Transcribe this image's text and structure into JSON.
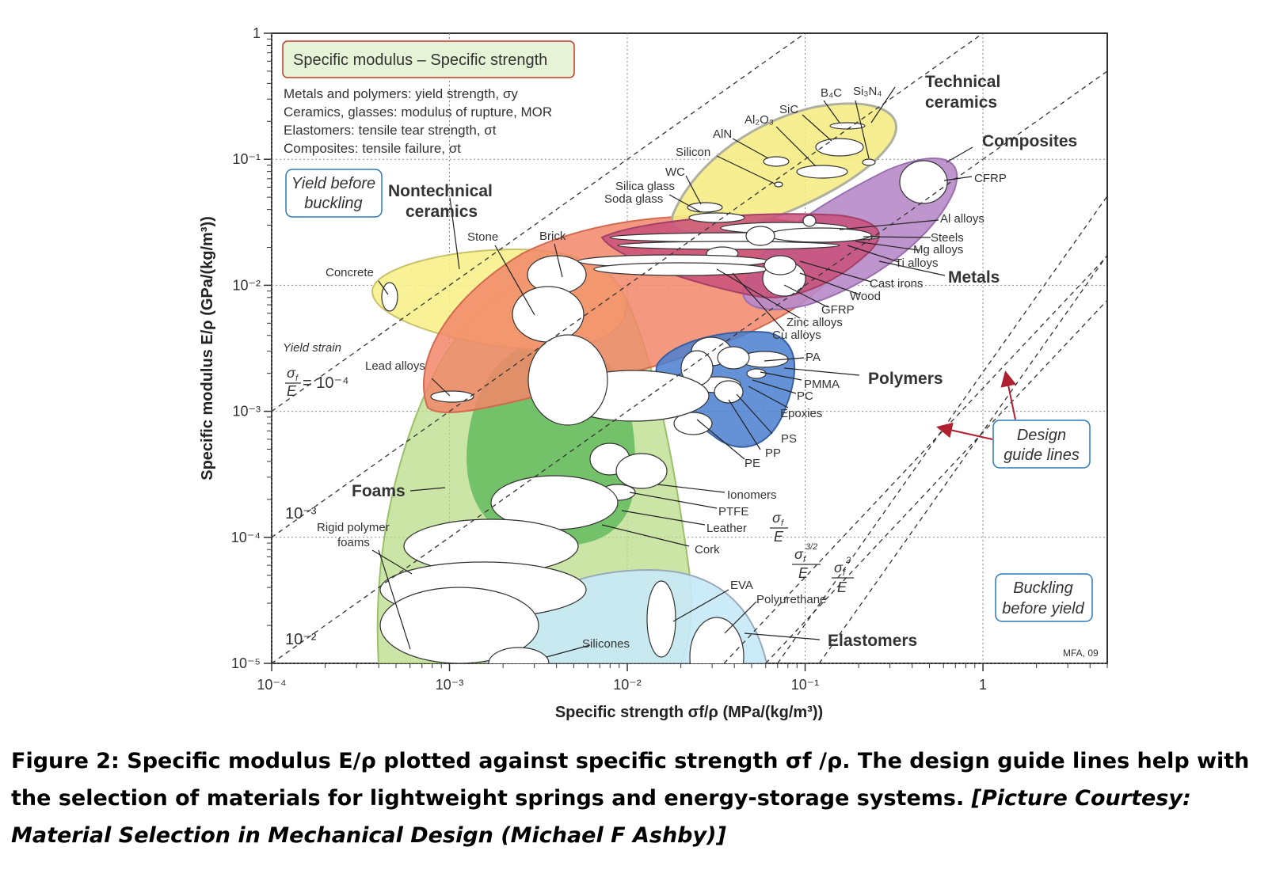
{
  "chart_data": {
    "type": "scatter",
    "subtype": "material-property bubble chart (log-log)",
    "x_scale": "log",
    "y_scale": "log",
    "xlim": [
      0.0001,
      5
    ],
    "ylim": [
      1e-05,
      1
    ],
    "grid": true,
    "xlabel": "Specific strength σf/ρ (MPa/(kg/m³))",
    "ylabel": "Specific modulus E/ρ (GPa/(kg/m³))",
    "x_ticks": [
      "10⁻⁴",
      "10⁻³",
      "10⁻²",
      "10⁻¹",
      "1"
    ],
    "y_ticks": [
      "10⁻⁵",
      "10⁻⁴",
      "10⁻³",
      "10⁻²",
      "10⁻¹",
      "1"
    ],
    "title_box": "Specific modulus – Specific strength",
    "notes": [
      "Metals and polymers: yield strength, σy",
      "Ceramics, glasses: modulus of rupture, MOR",
      "Elastomers: tensile tear strength, σt",
      "Composites: tensile failure, σt"
    ],
    "families": [
      {
        "name": "Technical ceramics",
        "color": "#f5ec84",
        "x_range": [
          0.02,
          0.6
        ],
        "y_range": [
          0.02,
          0.4
        ]
      },
      {
        "name": "Composites",
        "color": "#b889c9",
        "x_range": [
          0.05,
          1.5
        ],
        "y_range": [
          0.006,
          0.15
        ]
      },
      {
        "name": "Metals",
        "color": "#c9507a",
        "x_range": [
          0.0008,
          0.5
        ],
        "y_range": [
          0.004,
          0.05
        ]
      },
      {
        "name": "Nontechnical ceramics",
        "color": "#f5ec84",
        "x_range": [
          0.0003,
          0.01
        ],
        "y_range": [
          0.003,
          0.02
        ]
      },
      {
        "name": "Polymers",
        "color": "#4a7fd0",
        "x_range": [
          0.004,
          0.15
        ],
        "y_range": [
          0.0006,
          0.005
        ]
      },
      {
        "name": "Foams",
        "color": "#a8d06a",
        "x_range": [
          0.0003,
          0.03
        ],
        "y_range": [
          1e-05,
          0.003
        ]
      },
      {
        "name": "Elastomers",
        "color": "#bfe6f5",
        "x_range": [
          0.0013,
          0.06
        ],
        "y_range": [
          1e-05,
          5e-05
        ]
      }
    ],
    "materials": [
      {
        "name": "B4C",
        "x": 0.17,
        "y": 0.2
      },
      {
        "name": "Si3N4",
        "x": 0.24,
        "y": 0.13
      },
      {
        "name": "SiC",
        "x": 0.15,
        "y": 0.14
      },
      {
        "name": "Al2O3",
        "x": 0.11,
        "y": 0.09
      },
      {
        "name": "AlN",
        "x": 0.07,
        "y": 0.1
      },
      {
        "name": "Silicon",
        "x": 0.065,
        "y": 0.07
      },
      {
        "name": "WC",
        "x": 0.038,
        "y": 0.04
      },
      {
        "name": "Silica glass",
        "x": 0.03,
        "y": 0.032
      },
      {
        "name": "Soda glass",
        "x": 0.03,
        "y": 0.03
      },
      {
        "name": "CFRP",
        "x": 0.5,
        "y": 0.1
      },
      {
        "name": "Al alloys",
        "x": 0.09,
        "y": 0.028
      },
      {
        "name": "Steels",
        "x": 0.06,
        "y": 0.026
      },
      {
        "name": "Mg alloys",
        "x": 0.1,
        "y": 0.025
      },
      {
        "name": "Ti alloys",
        "x": 0.12,
        "y": 0.024
      },
      {
        "name": "Cast irons",
        "x": 0.04,
        "y": 0.014
      },
      {
        "name": "Wood",
        "x": 0.04,
        "y": 0.012
      },
      {
        "name": "GFRP",
        "x": 0.07,
        "y": 0.012
      },
      {
        "name": "Zinc alloys",
        "x": 0.025,
        "y": 0.015
      },
      {
        "name": "Cu alloys",
        "x": 0.03,
        "y": 0.012
      },
      {
        "name": "Concrete",
        "x": 0.00045,
        "y": 0.009
      },
      {
        "name": "Stone",
        "x": 0.0029,
        "y": 0.006
      },
      {
        "name": "Brick",
        "x": 0.004,
        "y": 0.011
      },
      {
        "name": "Lead alloys",
        "x": 0.0011,
        "y": 0.0011
      },
      {
        "name": "PA",
        "x": 0.035,
        "y": 0.0045
      },
      {
        "name": "PMMA",
        "x": 0.04,
        "y": 0.003
      },
      {
        "name": "PC",
        "x": 0.035,
        "y": 0.0023
      },
      {
        "name": "Epoxies",
        "x": 0.03,
        "y": 0.0019
      },
      {
        "name": "PS",
        "x": 0.03,
        "y": 0.0017
      },
      {
        "name": "PP",
        "x": 0.03,
        "y": 0.0012
      },
      {
        "name": "PE",
        "x": 0.02,
        "y": 0.0011
      },
      {
        "name": "Ionomers",
        "x": 0.012,
        "y": 0.00035
      },
      {
        "name": "PTFE",
        "x": 0.009,
        "y": 0.0002
      },
      {
        "name": "Leather",
        "x": 0.007,
        "y": 0.00025
      },
      {
        "name": "Cork",
        "x": 0.006,
        "y": 0.0001
      },
      {
        "name": "Rigid polymer foams",
        "x": 0.001,
        "y": 4e-05
      },
      {
        "name": "EVA",
        "x": 0.015,
        "y": 2.5e-05
      },
      {
        "name": "Polyurethane",
        "x": 0.03,
        "y": 1.5e-05
      },
      {
        "name": "Silicones",
        "x": 0.0025,
        "y": 1e-05
      }
    ],
    "design_guide_lines": [
      {
        "label": "σf/E",
        "exponent": 1,
        "values": [
          "10⁻⁴",
          "10⁻³",
          "10⁻²"
        ],
        "axis_note": "Yield strain"
      },
      {
        "label": "σf^3/2/E",
        "exponent": 1.5
      },
      {
        "label": "σf²/E",
        "exponent": 2
      }
    ],
    "annotations": [
      "Yield before buckling",
      "Buckling before yield",
      "Design guide lines",
      "MFA, 09"
    ]
  },
  "text": {
    "title_box": "Specific modulus – Specific strength",
    "note1": "Metals and polymers: yield strength, σy",
    "note2": "Ceramics, glasses: modulus of rupture, MOR",
    "note3": "Elastomers: tensile tear strength, σt",
    "note4": "Composites: tensile failure, σt",
    "xlabel": "Specific strength σf/ρ (MPa/(kg/m³))",
    "ylabel": "Specific modulus E/ρ (GPa/(kg/m³))",
    "yield_line1": "Yield before",
    "yield_line2": "buckling",
    "buckle_line1": "Buckling",
    "buckle_line2": "before yield",
    "guide_line1": "Design",
    "guide_line2": "guide lines",
    "yield_strain": "Yield strain",
    "ratio_1e4": "= 10⁻⁴",
    "ratio_1e3": "10⁻³",
    "ratio_1e2": "10⁻²",
    "credit": "MFA, 09",
    "fam_techceram_1": "Technical",
    "fam_techceram_2": "ceramics",
    "fam_composites": "Composites",
    "fam_metals": "Metals",
    "fam_nontech_1": "Nontechnical",
    "fam_nontech_2": "ceramics",
    "fam_polymers": "Polymers",
    "fam_foams": "Foams",
    "fam_elastomers": "Elastomers",
    "xt0": "10⁻⁴",
    "xt1": "10⁻³",
    "xt2": "10⁻²",
    "xt3": "10⁻¹",
    "xt4": "1",
    "yt0": "10⁻⁵",
    "yt1": "10⁻⁴",
    "yt2": "10⁻³",
    "yt3": "10⁻²",
    "yt4": "10⁻¹",
    "yt5": "1"
  },
  "labels": {
    "b4c": "B₄C",
    "si3n4": "Si₃N₄",
    "sic": "SiC",
    "al2o3": "Al₂O₃",
    "aln": "AlN",
    "silicon": "Silicon",
    "wc": "WC",
    "silica": "Silica glass",
    "soda": "Soda glass",
    "cfrp": "CFRP",
    "al": "Al alloys",
    "steels": "Steels",
    "mg": "Mg alloys",
    "ti": "Ti alloys",
    "cast": "Cast irons",
    "wood": "Wood",
    "gfrp": "GFRP",
    "zinc": "Zinc alloys",
    "cu": "Cu alloys",
    "concrete": "Concrete",
    "stone": "Stone",
    "brick": "Brick",
    "lead": "Lead alloys",
    "pa": "PA",
    "pmma": "PMMA",
    "pc": "PC",
    "epoxies": "Epoxies",
    "ps": "PS",
    "pp": "PP",
    "pe": "PE",
    "ionomers": "Ionomers",
    "ptfe": "PTFE",
    "leather": "Leather",
    "cork": "Cork",
    "rigid1": "Rigid polymer",
    "rigid2": "foams",
    "eva": "EVA",
    "pu": "Polyurethane",
    "silicones": "Silicones"
  },
  "caption": {
    "main": "Figure 2: Specific modulus E/ρ plotted against specific strength σf /ρ. The design guide lines help with the selection of materials for lightweight springs and energy-storage systems. ",
    "courtesy": "[Picture Courtesy: Material Selection in Mechanical Design (Michael F Ashby)]"
  },
  "colors": {
    "tech_ceramics": "#f5ec84",
    "composites": "#b889c9",
    "metals": "#c9507a",
    "metals_orange": "#f2876a",
    "nontech": "#f7ef8a",
    "polymers": "#4a7fd0",
    "foams": "#b9dc8a",
    "foams_dark": "#5cb85a",
    "elastomers": "#c6e9f7",
    "annotation_blue": "#2a78b8",
    "arrow_red": "#b02030",
    "title_box_border": "#c0392b"
  }
}
